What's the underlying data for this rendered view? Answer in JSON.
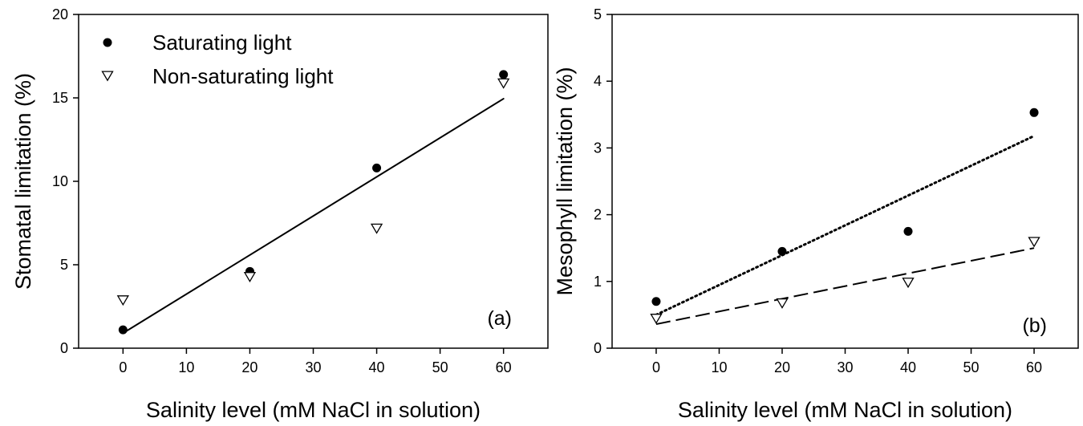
{
  "chart_data": [
    {
      "type": "scatter",
      "panel_label": "(a)",
      "xlabel": "Salinity level (mM NaCl in solution)",
      "ylabel": "Stomatal limitation (%)",
      "xlim": [
        -7,
        67
      ],
      "ylim": [
        0,
        20
      ],
      "xticks": [
        0,
        10,
        20,
        30,
        40,
        50,
        60
      ],
      "yticks": [
        0,
        5,
        10,
        15,
        20
      ],
      "grid": false,
      "legend_position": "top-left",
      "series": [
        {
          "name": "Saturating light",
          "marker": "filled-circle",
          "x": [
            0,
            20,
            40,
            60
          ],
          "y": [
            1.1,
            4.6,
            10.8,
            16.4
          ]
        },
        {
          "name": "Non-saturating light",
          "marker": "open-triangle-down",
          "x": [
            0,
            20,
            40,
            60
          ],
          "y": [
            2.9,
            4.3,
            7.2,
            15.9
          ]
        }
      ],
      "fit_lines": [
        {
          "style": "solid",
          "x": [
            0,
            60
          ],
          "y": [
            0.9,
            14.95
          ]
        }
      ]
    },
    {
      "type": "scatter",
      "panel_label": "(b)",
      "xlabel": "Salinity level (mM NaCl in solution)",
      "ylabel": "Mesophyll limitation (%)",
      "xlim": [
        -7,
        67
      ],
      "ylim": [
        0,
        5
      ],
      "xticks": [
        0,
        10,
        20,
        30,
        40,
        50,
        60
      ],
      "yticks": [
        0,
        1,
        2,
        3,
        4,
        5
      ],
      "grid": false,
      "series": [
        {
          "marker": "filled-circle",
          "x": [
            0,
            20,
            40,
            60
          ],
          "y": [
            0.7,
            1.45,
            1.75,
            3.53
          ]
        },
        {
          "marker": "open-triangle-down",
          "x": [
            0,
            20,
            40,
            60
          ],
          "y": [
            0.45,
            0.68,
            0.99,
            1.6
          ]
        }
      ],
      "fit_lines": [
        {
          "style": "dotted",
          "x": [
            0,
            60
          ],
          "y": [
            0.5,
            3.18
          ]
        },
        {
          "style": "dashed",
          "x": [
            0,
            60
          ],
          "y": [
            0.36,
            1.5
          ]
        }
      ]
    }
  ]
}
